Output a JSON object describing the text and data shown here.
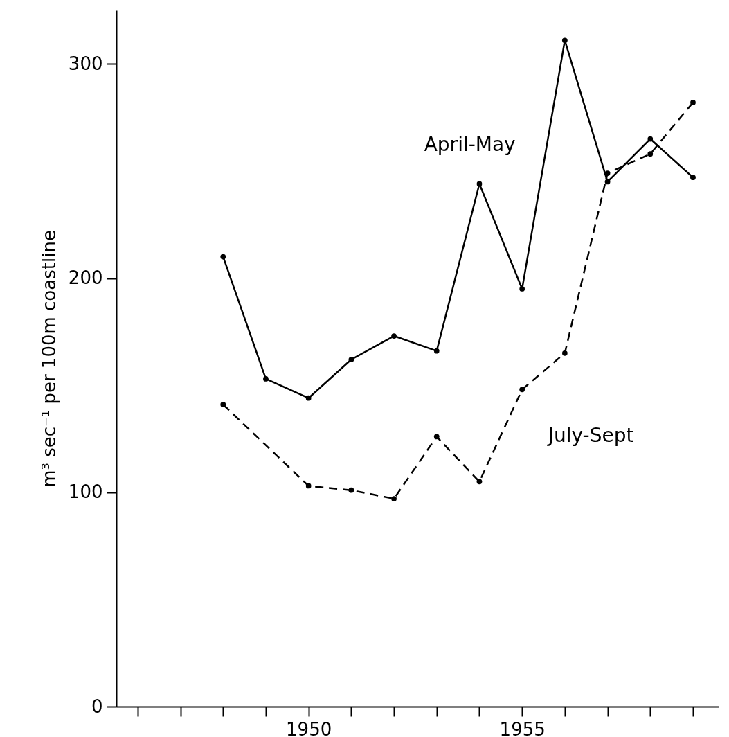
{
  "chart_data": {
    "type": "line",
    "ylabel": "m³ sec⁻¹ per 100m coastline",
    "x": [
      1948,
      1949,
      1950,
      1951,
      1952,
      1953,
      1954,
      1955,
      1956,
      1957,
      1958,
      1959
    ],
    "series": [
      {
        "name": "April-May",
        "color": "#000000",
        "line_style": "solid",
        "values": [
          210,
          153,
          144,
          162,
          173,
          166,
          244,
          195,
          311,
          245,
          265,
          247
        ]
      },
      {
        "name": "July-Sept",
        "color": "#000000",
        "line_style": "dashed",
        "values": [
          141,
          null,
          103,
          101,
          97,
          126,
          105,
          148,
          165,
          249,
          258,
          282
        ]
      }
    ],
    "xlim": [
      1945.5,
      1959.6
    ],
    "xticks": [
      {
        "value": 1946,
        "label": null
      },
      {
        "value": 1947,
        "label": null
      },
      {
        "value": 1948,
        "label": null
      },
      {
        "value": 1949,
        "label": null
      },
      1950,
      {
        "value": 1951,
        "label": null
      },
      {
        "value": 1952,
        "label": null
      },
      {
        "value": 1953,
        "label": null
      },
      {
        "value": 1954,
        "label": null
      },
      1955,
      {
        "value": 1956,
        "label": null
      },
      {
        "value": 1957,
        "label": null
      },
      {
        "value": 1958,
        "label": null
      },
      {
        "value": 1959,
        "label": null
      }
    ],
    "ylim": [
      0,
      325
    ],
    "yticks": [
      0,
      100,
      200,
      300
    ],
    "grid": false,
    "marker": "circle"
  }
}
